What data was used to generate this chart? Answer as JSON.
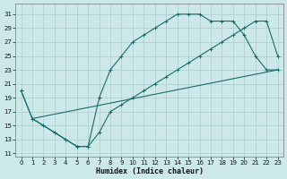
{
  "xlabel": "Humidex (Indice chaleur)",
  "bg_color": "#cce8e8",
  "line_color": "#1a6b6b",
  "grid_color": "#aacece",
  "xlim": [
    -0.5,
    23.5
  ],
  "ylim": [
    10.5,
    32.5
  ],
  "xticks": [
    0,
    1,
    2,
    3,
    4,
    5,
    6,
    7,
    8,
    9,
    10,
    11,
    12,
    13,
    14,
    15,
    16,
    17,
    18,
    19,
    20,
    21,
    22,
    23
  ],
  "yticks": [
    11,
    13,
    15,
    17,
    19,
    21,
    23,
    25,
    27,
    29,
    31
  ],
  "line1_x": [
    0,
    1,
    2,
    3,
    4,
    5,
    6,
    7,
    8,
    9,
    10,
    11,
    12,
    13,
    14,
    15,
    16,
    17,
    18,
    19,
    20,
    21,
    22,
    23
  ],
  "line1_y": [
    20,
    16,
    15,
    14,
    13,
    12,
    12,
    19,
    23,
    25,
    27,
    28,
    29,
    30,
    31,
    31,
    31,
    30,
    30,
    30,
    28,
    25,
    23,
    23
  ],
  "line2_x": [
    0,
    1,
    2,
    3,
    4,
    5,
    6,
    7,
    8,
    9,
    10,
    11,
    12,
    13,
    14,
    15,
    16,
    17,
    18,
    19,
    20,
    21,
    22,
    23
  ],
  "line2_y": [
    20,
    16,
    15,
    14,
    13,
    12,
    12,
    14,
    17,
    18,
    19,
    20,
    21,
    22,
    23,
    24,
    25,
    26,
    27,
    28,
    29,
    30,
    30,
    25
  ],
  "line3_x": [
    1,
    23
  ],
  "line3_y": [
    16,
    23
  ],
  "marker_size": 2.5,
  "line_width": 0.8
}
